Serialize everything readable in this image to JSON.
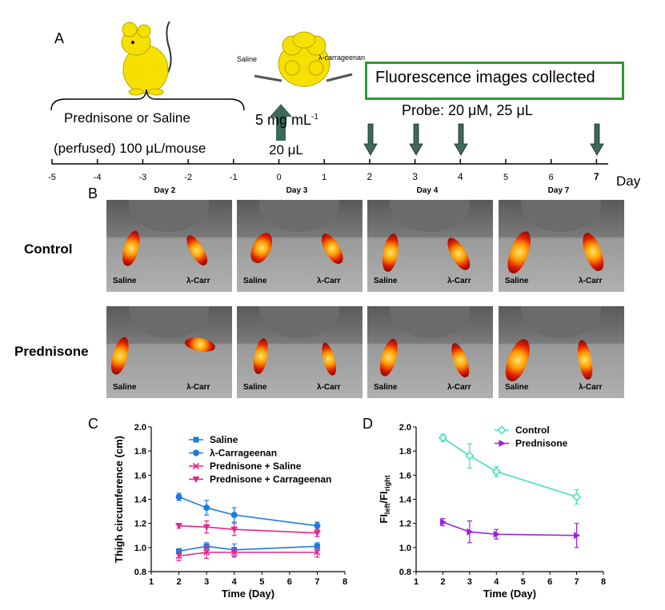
{
  "panelA": {
    "letter": "A",
    "saline": "Saline",
    "carrageenan": "λ-carrageenan",
    "fluor_box": "Fluorescence images collected",
    "probe": "Probe: 20 μM, 25 μL",
    "treatment": "Prednisone or Saline",
    "dose_note": "(perfused) 100 μL/mouse",
    "conc": "5 mg mL",
    "conc_exp": "-1",
    "volume": "20 μL",
    "axis_label": "Day",
    "ticks": [
      "-5",
      "-4",
      "-3",
      "-2",
      "-1",
      "0",
      "1",
      "2",
      "3",
      "4",
      "5",
      "6",
      "7"
    ]
  },
  "panelB": {
    "letter": "B",
    "days": [
      "Day 2",
      "Day 3",
      "Day 4",
      "Day 7"
    ],
    "rows": [
      "Control",
      "Prednisone"
    ],
    "left_label": "Saline",
    "right_label": "λ-Carr"
  },
  "colors": {
    "blue": "#1a7be0",
    "pink": "#e8268a",
    "teal": "#3fe0b8",
    "purple": "#9a20e0",
    "green_box": "#2e9c2e",
    "arrow": "#3c6a5a"
  },
  "chart_data": [
    {
      "id": "C",
      "type": "line",
      "letter": "C",
      "xlabel": "Time (Day)",
      "ylabel": "Thigh circumference (cm)",
      "xlim": [
        1,
        8
      ],
      "ylim": [
        0.8,
        2.0
      ],
      "xticks": [
        "1",
        "2",
        "3",
        "4",
        "5",
        "6",
        "7",
        "8"
      ],
      "yticks": [
        "0.8",
        "1.0",
        "1.2",
        "1.4",
        "1.6",
        "1.8",
        "2.0"
      ],
      "x": [
        2,
        3,
        4,
        7
      ],
      "series": [
        {
          "name": "Saline",
          "values": [
            0.97,
            1.01,
            0.98,
            1.01
          ],
          "err": [
            0.02,
            0.03,
            0.05,
            0.03
          ],
          "color": "#1a7be0",
          "marker": "square"
        },
        {
          "name": "λ-Carrageenan",
          "values": [
            1.42,
            1.33,
            1.27,
            1.18
          ],
          "err": [
            0.03,
            0.06,
            0.06,
            0.03
          ],
          "color": "#1a7be0",
          "marker": "circle"
        },
        {
          "name": "Prednisone + Saline",
          "values": [
            0.93,
            0.96,
            0.96,
            0.96
          ],
          "err": [
            0.04,
            0.05,
            0.04,
            0.04
          ],
          "color": "#e8268a",
          "marker": "x"
        },
        {
          "name": "Prednisone + Carrageenan",
          "values": [
            1.18,
            1.17,
            1.15,
            1.12
          ],
          "err": [
            0.02,
            0.05,
            0.05,
            0.03
          ],
          "color": "#e8268a",
          "marker": "triangle"
        }
      ],
      "legend": "top-right"
    },
    {
      "id": "D",
      "type": "line",
      "letter": "D",
      "xlabel": "Time (Day)",
      "ylabel": "FI",
      "ylabel_sub1": "left",
      "ylabel_mid": "/FI",
      "ylabel_sub2": "right",
      "xlim": [
        1,
        8
      ],
      "ylim": [
        0.8,
        2.0
      ],
      "xticks": [
        "1",
        "2",
        "3",
        "4",
        "5",
        "6",
        "7",
        "8"
      ],
      "yticks": [
        "0.8",
        "1.0",
        "1.2",
        "1.4",
        "1.6",
        "1.8",
        "2.0"
      ],
      "x": [
        2,
        3,
        4,
        7
      ],
      "series": [
        {
          "name": "Control",
          "values": [
            1.91,
            1.76,
            1.63,
            1.42
          ],
          "err": [
            0.03,
            0.1,
            0.04,
            0.06
          ],
          "color": "#3fe0b8",
          "marker": "diamond"
        },
        {
          "name": "Prednisone",
          "values": [
            1.21,
            1.13,
            1.11,
            1.1
          ],
          "err": [
            0.03,
            0.09,
            0.04,
            0.1
          ],
          "color": "#9a20e0",
          "marker": "tri-right"
        }
      ],
      "legend": "top-right"
    }
  ]
}
